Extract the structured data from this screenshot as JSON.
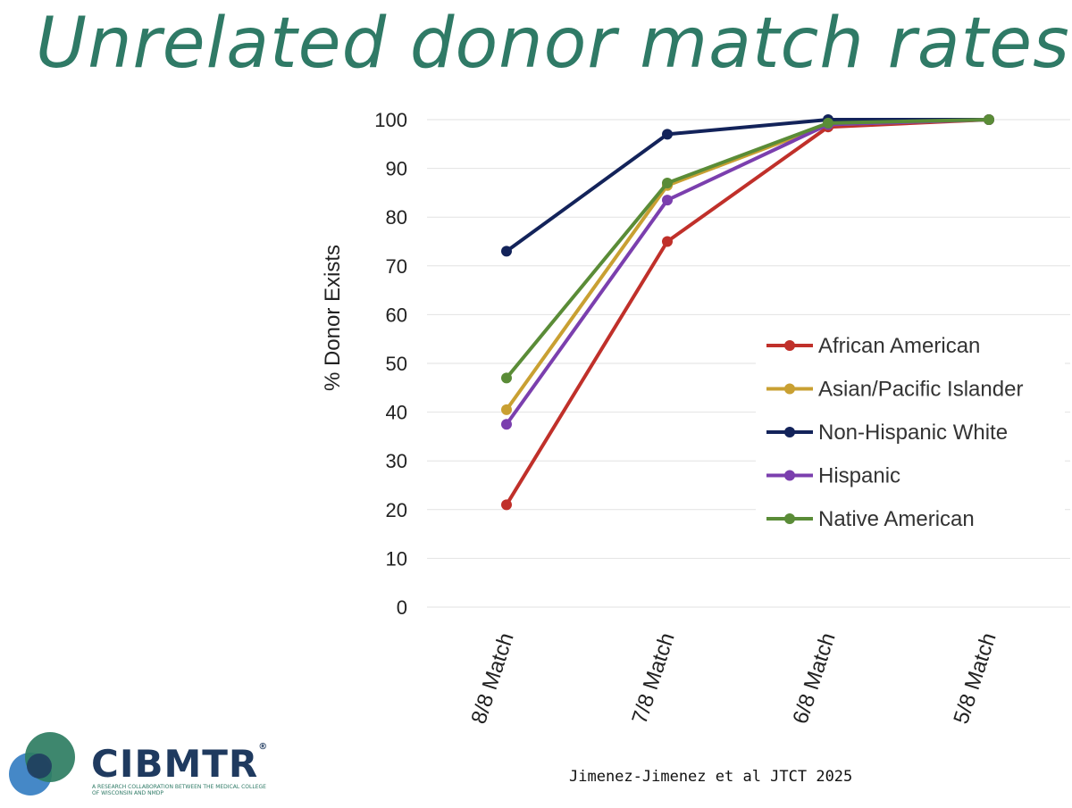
{
  "title": "Unrelated donor match rates",
  "citation": "Jimenez-Jimenez et al JTCT 2025",
  "logo": {
    "name": "CIBMTR",
    "tm": "®",
    "tagline": "A Research Collaboration Between the Medical College of Wisconsin and NMDP"
  },
  "chart_data": {
    "type": "line",
    "title": "",
    "xlabel": "",
    "ylabel": "% Donor Exists",
    "ylim": [
      0,
      100
    ],
    "yticks": [
      0,
      10,
      20,
      30,
      40,
      50,
      60,
      70,
      80,
      90,
      100
    ],
    "grid": true,
    "legend_position": "right-middle",
    "categories": [
      "8/8 Match",
      "7/8 Match",
      "6/8 Match",
      "5/8 Match"
    ],
    "series": [
      {
        "name": "African American",
        "color": "#c0302a",
        "values": [
          21,
          75,
          98.5,
          100
        ]
      },
      {
        "name": "Asian/Pacific Islander",
        "color": "#c9a032",
        "values": [
          40.5,
          86.5,
          99,
          100
        ]
      },
      {
        "name": "Non-Hispanic White",
        "color": "#13235a",
        "values": [
          73,
          97,
          100,
          100
        ]
      },
      {
        "name": "Hispanic",
        "color": "#7b3fae",
        "values": [
          37.5,
          83.5,
          99,
          100
        ]
      },
      {
        "name": "Native American",
        "color": "#5a8c37",
        "values": [
          47,
          87,
          99.3,
          100
        ]
      }
    ]
  }
}
